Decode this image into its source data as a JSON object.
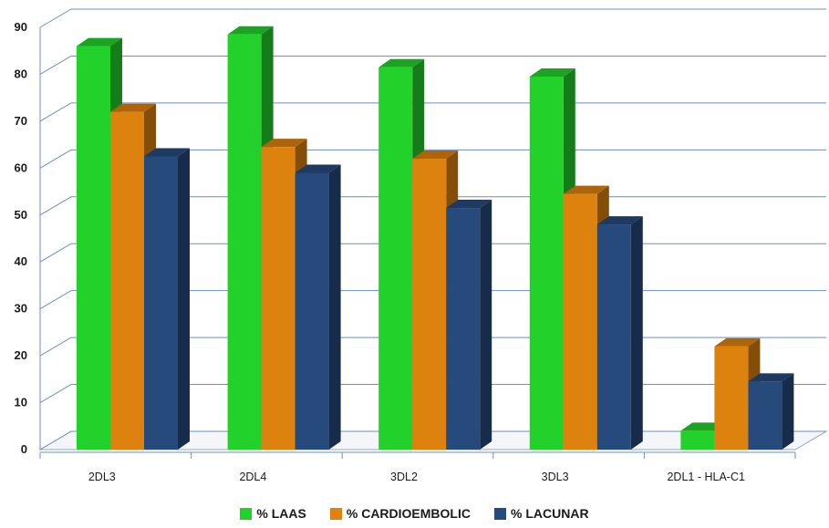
{
  "chart_data": {
    "type": "bar",
    "title": "",
    "xlabel": "",
    "ylabel": "",
    "ylim": [
      0,
      90
    ],
    "yticks": [
      0,
      10,
      20,
      30,
      40,
      50,
      60,
      70,
      80,
      90
    ],
    "categories": [
      "2DL3",
      "2DL4",
      "3DL2",
      "3DL3",
      "2DL1 - HLA-C1"
    ],
    "series": [
      {
        "name": "% LAAS",
        "color": "#22d12a",
        "values": [
          86,
          88.5,
          81.5,
          79.5,
          4
        ]
      },
      {
        "name": "% CARDIOEMBOLIC",
        "color": "#dd820e",
        "values": [
          72,
          64.5,
          62,
          54.5,
          22
        ]
      },
      {
        "name": "% LACUNAR",
        "color": "#264a7c",
        "values": [
          62.5,
          59,
          51.5,
          48,
          14.5
        ]
      }
    ],
    "grid": true,
    "legend_position": "bottom",
    "style": "3d-clustered-bar"
  }
}
